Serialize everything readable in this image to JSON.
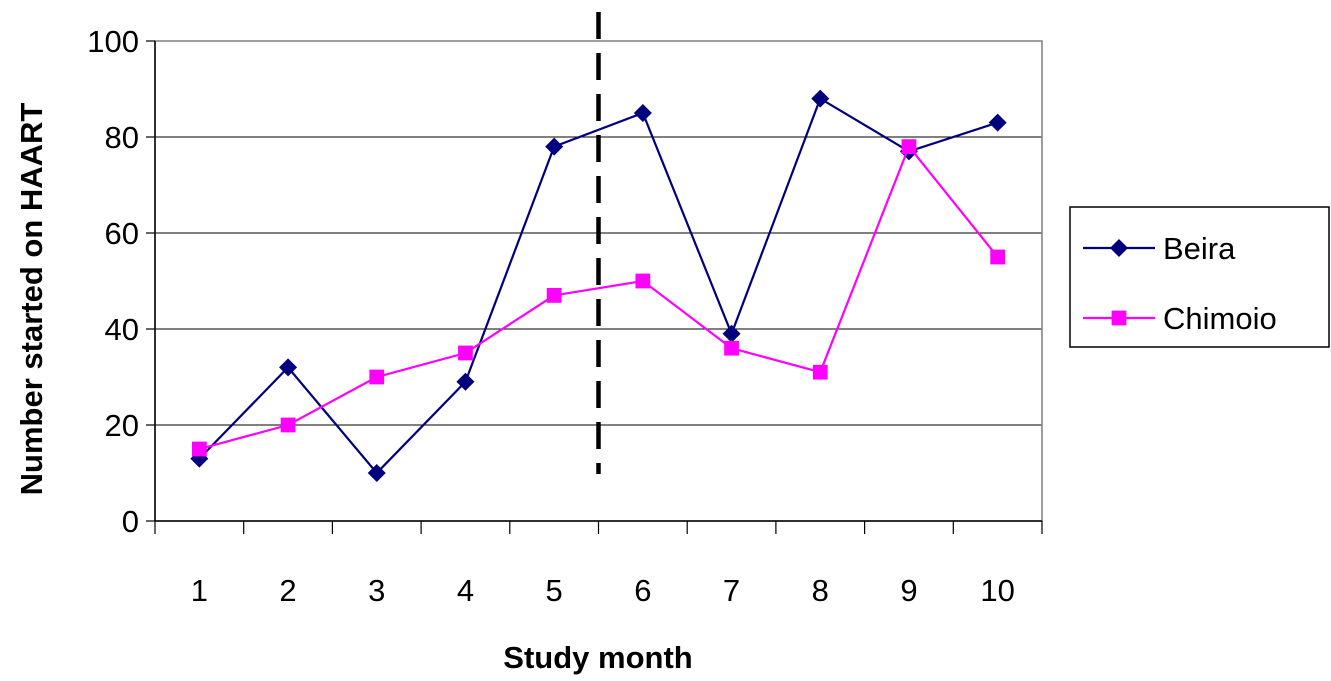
{
  "chart_data": {
    "type": "line",
    "title": "",
    "xlabel": "Study month",
    "ylabel": "Number started on HAART",
    "categories": [
      "1",
      "2",
      "3",
      "4",
      "5",
      "6",
      "7",
      "8",
      "9",
      "10"
    ],
    "ylim": [
      0,
      100
    ],
    "yticks": [
      "0",
      "20",
      "40",
      "60",
      "80",
      "100"
    ],
    "grid": true,
    "legend_position": "right",
    "reference_line": {
      "style": "dashed",
      "between_categories": [
        "5",
        "6"
      ]
    },
    "series": [
      {
        "name": "Beira",
        "marker": "diamond",
        "color": "#00007F",
        "values": [
          13,
          32,
          10,
          29,
          78,
          85,
          39,
          88,
          77,
          83
        ]
      },
      {
        "name": "Chimoio",
        "marker": "square",
        "color": "#FF00FF",
        "values": [
          15,
          20,
          30,
          35,
          47,
          50,
          36,
          31,
          78,
          55
        ]
      }
    ]
  }
}
